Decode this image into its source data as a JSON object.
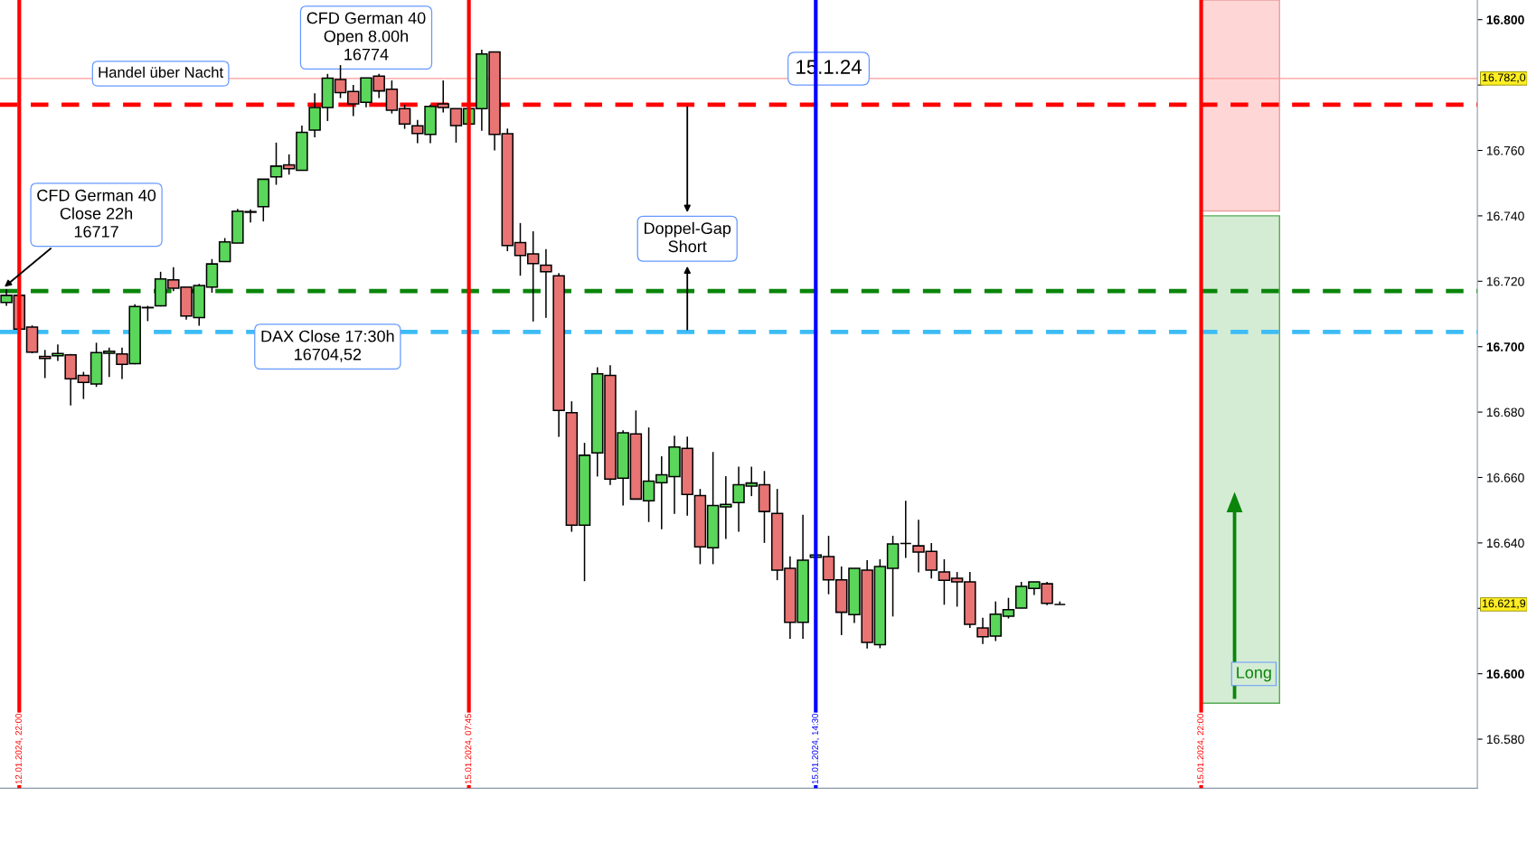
{
  "chart_data": {
    "type": "candlestick",
    "categories": [
      null,
      "12.01.2024, 22:00",
      null,
      null,
      null,
      null,
      null,
      null,
      null,
      null,
      null,
      null,
      null,
      null,
      null,
      null,
      null,
      null,
      null,
      null,
      null,
      null,
      null,
      null,
      null,
      null,
      null,
      null,
      null,
      null,
      null,
      null,
      null,
      null,
      null,
      null,
      "15.01.2024, 07:45",
      null,
      null,
      null,
      null,
      null,
      null,
      null,
      null,
      null,
      null,
      null,
      null,
      null,
      null,
      null,
      null,
      null,
      null,
      null,
      null,
      null,
      null,
      null,
      null,
      null,
      null,
      "15.01.2024, 14:30",
      null,
      null,
      null,
      null,
      null,
      null,
      null,
      null,
      null,
      null,
      null,
      null,
      null,
      null,
      null,
      null,
      null,
      null,
      null,
      null,
      null,
      null,
      null,
      null,
      null,
      null,
      null,
      null,
      null,
      "15.01.2024, 22:00",
      null,
      null,
      null,
      null,
      null,
      null,
      null,
      null,
      null,
      null,
      null,
      null,
      null,
      null,
      null,
      null,
      null,
      null,
      null,
      null,
      null
    ],
    "ohlc": [
      [
        16713.5,
        16717.6,
        16712.5,
        16715.7
      ],
      [
        16715.7,
        16716.5,
        16705,
        16705.4
      ],
      [
        16706,
        16706.5,
        16698,
        16698.3
      ],
      [
        16697,
        16699,
        16690.4,
        16696.4
      ],
      [
        16697.2,
        16700.7,
        16695.6,
        16697.9
      ],
      [
        16697.5,
        16697.8,
        16682,
        16690.2
      ],
      [
        16691.2,
        16692.3,
        16684,
        16689.1
      ],
      [
        16688.6,
        16701.2,
        16687.7,
        16698.2
      ],
      [
        16698,
        16699.7,
        16690.7,
        16698.6
      ],
      [
        16697.8,
        16699.7,
        16690.1,
        16694.6
      ],
      [
        16694.8,
        16713,
        16694.6,
        16712.3
      ],
      [
        16711.9,
        16712.5,
        16707.8,
        16712
      ],
      [
        16712.5,
        16722.9,
        16712.3,
        16720.7
      ],
      [
        16720.4,
        16724.3,
        16717,
        16717.9
      ],
      [
        16718.2,
        16718.2,
        16708.3,
        16709.4
      ],
      [
        16708.9,
        16719.2,
        16706.4,
        16718.7
      ],
      [
        16718.2,
        16726.8,
        16716.5,
        16725.3
      ],
      [
        16726,
        16733.2,
        16726,
        16732
      ],
      [
        16731.7,
        16742.1,
        16731.7,
        16741.4
      ],
      [
        16741.1,
        16742,
        16738,
        16741.3
      ],
      [
        16742.8,
        16751.2,
        16738.3,
        16751.2
      ],
      [
        16751.9,
        16762.4,
        16749.5,
        16755.2
      ],
      [
        16755.6,
        16758.8,
        16752.6,
        16754.4
      ],
      [
        16753.9,
        16767.6,
        16753.9,
        16765.5
      ],
      [
        16766.2,
        16777.5,
        16764,
        16773.1
      ],
      [
        16773.1,
        16783.4,
        16769,
        16782.1
      ],
      [
        16781.7,
        16786.1,
        16776,
        16777.7
      ],
      [
        16778,
        16780,
        16770.5,
        16774.2
      ],
      [
        16774.7,
        16782.2,
        16773.2,
        16782.2
      ],
      [
        16782.7,
        16783.4,
        16776,
        16778.2
      ],
      [
        16778.7,
        16781.4,
        16771.3,
        16772.3
      ],
      [
        16772.8,
        16774,
        16766.6,
        16768.1
      ],
      [
        16767.5,
        16769.3,
        16762.2,
        16765.2
      ],
      [
        16764.9,
        16774,
        16762.2,
        16773.5
      ],
      [
        16774.2,
        16781.4,
        16771.6,
        16773.1
      ],
      [
        16772.8,
        16772.8,
        16762.4,
        16767.6
      ],
      [
        16768.1,
        16772.8,
        16768,
        16772.8
      ],
      [
        16772.8,
        16790.8,
        16766,
        16789.5
      ],
      [
        16790.1,
        16790.1,
        16760,
        16764.9
      ],
      [
        16765.1,
        16766.7,
        16729.2,
        16730.9
      ],
      [
        16731.8,
        16737.8,
        16721.7,
        16727.9
      ],
      [
        16728.4,
        16735.3,
        16707.7,
        16725.4
      ],
      [
        16724.9,
        16729.8,
        16708.8,
        16722.9
      ],
      [
        16721.7,
        16722.5,
        16672.4,
        16680.5
      ],
      [
        16679.8,
        16683.3,
        16643.4,
        16645.4
      ],
      [
        16645.4,
        16670.6,
        16628.3,
        16666.8
      ],
      [
        16667.5,
        16693.7,
        16660.3,
        16691.7
      ],
      [
        16691.2,
        16694.3,
        16657.7,
        16659.5
      ],
      [
        16659.8,
        16674.4,
        16651.4,
        16673.7
      ],
      [
        16673.3,
        16680.5,
        16653.4,
        16653.4
      ],
      [
        16652.9,
        16675.3,
        16646.4,
        16658.9
      ],
      [
        16658.4,
        16666.5,
        16644.2,
        16660.8
      ],
      [
        16660.3,
        16672.8,
        16648.9,
        16669.3
      ],
      [
        16668.9,
        16672.5,
        16648.3,
        16654.8
      ],
      [
        16654.5,
        16656.5,
        16633.5,
        16638.8
      ],
      [
        16638.5,
        16667.8,
        16633.5,
        16651.4
      ],
      [
        16651,
        16660.4,
        16641.2,
        16651.8
      ],
      [
        16652.3,
        16663.3,
        16643.4,
        16657.8
      ],
      [
        16657.4,
        16663.3,
        16654.3,
        16658.3
      ],
      [
        16657.8,
        16662,
        16640,
        16649.6
      ],
      [
        16649,
        16656.5,
        16628.6,
        16631.7
      ],
      [
        16632.2,
        16635.9,
        16610.7,
        16615.7
      ],
      [
        16615.7,
        16648.6,
        16610.7,
        16634.7
      ],
      [
        16635.6,
        16637,
        16635,
        16636.3
      ],
      [
        16635.8,
        16642.2,
        16624.3,
        16628.7
      ],
      [
        16628.7,
        16632.8,
        16611.8,
        16618.8
      ],
      [
        16618.1,
        16632.2,
        16615.5,
        16632.2
      ],
      [
        16631.7,
        16634.7,
        16607.7,
        16609.6
      ],
      [
        16608.9,
        16635,
        16607.8,
        16632.8
      ],
      [
        16632.2,
        16642.2,
        16617.5,
        16639.7
      ],
      [
        16639.8,
        16652.9,
        16635.4,
        16639.8
      ],
      [
        16639.1,
        16647.1,
        16631,
        16637.2
      ],
      [
        16637.4,
        16640,
        16629.1,
        16631.7
      ],
      [
        16631.1,
        16635,
        16621.1,
        16628.6
      ],
      [
        16629.2,
        16631.1,
        16620.5,
        16628.1
      ],
      [
        16628.1,
        16631.1,
        16614,
        16615.1
      ],
      [
        16614,
        16617.1,
        16609.1,
        16611.3
      ],
      [
        16611.5,
        16622.1,
        16610,
        16618.2
      ],
      [
        16617.6,
        16623.2,
        16616.9,
        16619.6
      ],
      [
        16620.1,
        16628.1,
        16620.1,
        16626.7
      ],
      [
        16626.1,
        16628.1,
        16624.1,
        16628.1
      ],
      [
        16627.5,
        16628.1,
        16621,
        16621.5
      ],
      [
        16621.2,
        16622.1,
        16621.2,
        16621.2
      ],
      null,
      null,
      null,
      null,
      null,
      null,
      null,
      null,
      null,
      null,
      null,
      null,
      null,
      null,
      null,
      null,
      null,
      null,
      null,
      null,
      null,
      null,
      null,
      null,
      null,
      null,
      null,
      null,
      null,
      null,
      null,
      null
    ],
    "colors": [
      "#5ad65a",
      "#e87474",
      "#e87474",
      "#e87474",
      "#5ad65a",
      "#e87474",
      "#e87474",
      "#5ad65a",
      "#5ad65a",
      "#e87474",
      "#5ad65a",
      "#5ad65a",
      "#5ad65a",
      "#e87474",
      "#e87474",
      "#5ad65a",
      "#5ad65a",
      "#5ad65a",
      "#5ad65a",
      "#5ad65a",
      "#5ad65a",
      "#5ad65a",
      "#e87474",
      "#5ad65a",
      "#5ad65a",
      "#5ad65a",
      "#e87474",
      "#e87474",
      "#5ad65a",
      "#e87474",
      "#e87474",
      "#e87474",
      "#e87474",
      "#5ad65a",
      "#e87474",
      "#e87474",
      "#5ad65a",
      "#5ad65a",
      "#e87474",
      "#e87474",
      "#e87474",
      "#e87474",
      "#e87474",
      "#e87474",
      "#e87474",
      "#5ad65a",
      "#5ad65a",
      "#e87474",
      "#5ad65a",
      "#e87474",
      "#5ad65a",
      "#5ad65a",
      "#5ad65a",
      "#e87474",
      "#e87474",
      "#5ad65a",
      "#5ad65a",
      "#5ad65a",
      "#5ad65a",
      "#e87474",
      "#e87474",
      "#e87474",
      "#5ad65a",
      "#5ad65a",
      "#e87474",
      "#e87474",
      "#5ad65a",
      "#e87474",
      "#5ad65a",
      "#5ad65a",
      "#000000",
      "#e87474",
      "#e87474",
      "#e87474",
      "#e87474",
      "#e87474",
      "#e87474",
      "#5ad65a",
      "#5ad65a",
      "#5ad65a",
      "#5ad65a",
      "#e87474",
      "#000000",
      null,
      null,
      null,
      null,
      null,
      null,
      null,
      null,
      null,
      null,
      null,
      null,
      null,
      null,
      null,
      null,
      null,
      null,
      null,
      null,
      null,
      null,
      null,
      null,
      null,
      null,
      null,
      null,
      null,
      null,
      null,
      null
    ],
    "ylim": [
      16565,
      16806
    ],
    "yticks": [
      {
        "value": 16580,
        "label": "16.580"
      },
      {
        "value": 16600,
        "label": "16.600"
      },
      {
        "value": 16620,
        "label": null
      },
      {
        "value": 16640,
        "label": "16.640"
      },
      {
        "value": 16660,
        "label": "16.660"
      },
      {
        "value": 16680,
        "label": "16.680"
      },
      {
        "value": 16700,
        "label": "16.700"
      },
      {
        "value": 16720,
        "label": "16.720"
      },
      {
        "value": 16740,
        "label": "16.740"
      },
      {
        "value": 16760,
        "label": "16.760"
      },
      {
        "value": 16780,
        "label": null
      },
      {
        "value": 16800,
        "label": "16.800"
      }
    ],
    "grid": false,
    "legend": false,
    "ref_lines": [
      {
        "axis": "x",
        "value": "12.01.2024, 22:00",
        "color": "#ff0000",
        "line_style": "solid"
      },
      {
        "axis": "x",
        "value": "15.01.2024, 07:45",
        "color": "#ff0000",
        "line_style": "solid"
      },
      {
        "axis": "x",
        "value": "15.01.2024, 14:30",
        "color": "#0000ff",
        "line_style": "solid"
      },
      {
        "axis": "x",
        "value": "15.01.2024, 22:00",
        "color": "#ff0000",
        "line_style": "solid"
      },
      {
        "axis": "y",
        "value": 16782,
        "label": "16.782,0",
        "color": "#ff9999",
        "line_style": "solid"
      },
      {
        "axis": "y",
        "value": 16774,
        "color": "#ff0000",
        "line_style": "dashed"
      },
      {
        "axis": "y",
        "value": 16717,
        "color": "#0a850a",
        "line_style": "dashed"
      },
      {
        "axis": "y",
        "value": 16704.52,
        "color": "#3dbcf5",
        "line_style": "dashed"
      }
    ],
    "bands": [
      {
        "axis": "y",
        "from": 16741.5,
        "to": 16806,
        "color": "#ffd6d6"
      },
      {
        "axis": "y",
        "from": 16591,
        "to": 16740,
        "color": "#d4ecd4",
        "label": "Long"
      }
    ],
    "annotations": [
      "Handel über Nacht",
      "CFD German 40\nOpen 8.00h\n16774",
      "CFD German 40\nClose 22h\n16717",
      "DAX Close 17:30h\n16704,52",
      "15.1.24",
      "Doppel-Gap\nShort",
      "16.621,9"
    ]
  }
}
